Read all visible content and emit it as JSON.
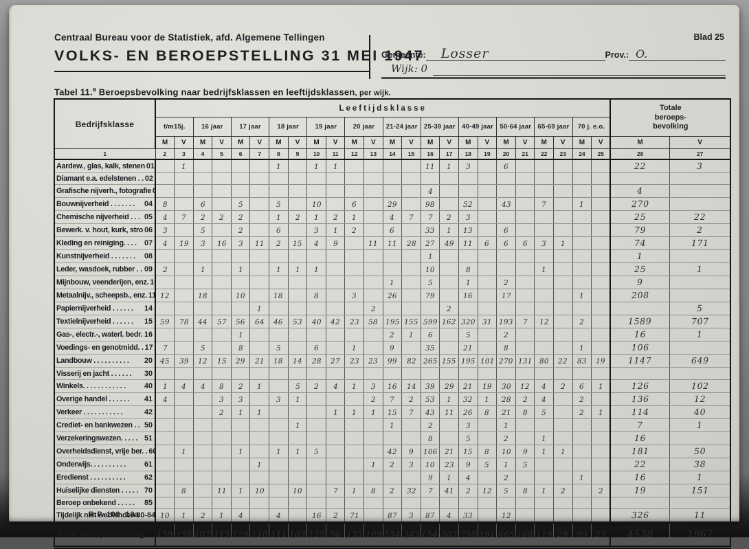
{
  "header": {
    "org": "Centraal Bureau voor de Statistiek, afd. Algemene Tellingen",
    "title": "VOLKS- EN BEROEPSTELLING 31 MEI 1947",
    "blad": "Blad 25",
    "gemeente_label": "Gemeente:",
    "gemeente_value": "Losser",
    "prov_label": "Prov.:",
    "prov_value": "O.",
    "wijk_label": "Wijk:",
    "wijk_value": "0"
  },
  "table_title": {
    "bold": "Tabel 11.",
    "sup": "a",
    "main": " Beroepsbevolking naar bedrijfsklassen en leeftijdsklassen",
    "suffix": ", per wijk."
  },
  "footer": "R.P. 108. 13a",
  "table": {
    "col1_header": "Bedrijfsklasse",
    "col1_number": "1",
    "leeftijd_header": "Leeftijdsklasse",
    "totale_header": "Totale beroeps-bevolking",
    "age_groups": [
      "t/m15j.",
      "16 jaar",
      "17 jaar",
      "18 jaar",
      "19 jaar",
      "20 jaar",
      "21-24 jaar",
      "25-39 jaar",
      "40-49 jaar",
      "50-64 jaar",
      "65-69 jaar",
      "70 j. e.o."
    ],
    "mv_labels": [
      "M",
      "V"
    ],
    "col_numbers": [
      "2",
      "3",
      "4",
      "5",
      "6",
      "7",
      "8",
      "9",
      "10",
      "11",
      "12",
      "13",
      "14",
      "15",
      "16",
      "17",
      "18",
      "19",
      "20",
      "21",
      "22",
      "23",
      "24",
      "25",
      "26",
      "27"
    ],
    "rows": [
      {
        "code": "01",
        "label": "Aardew., glas, kalk, stenen",
        "values": {
          "3": "1",
          "8": "1",
          "10": "1",
          "11": "1",
          "16": "11",
          "17": "1",
          "18": "3",
          "20": "6",
          "26": "22",
          "27": "3"
        }
      },
      {
        "code": "02",
        "label": "Diamant e.a. edelstenen . .",
        "values": {}
      },
      {
        "code": "03",
        "label": "Grafische nijverh., fotografie",
        "values": {
          "16": "4",
          "26": "4"
        }
      },
      {
        "code": "04",
        "label": "Bouwnijverheid . . . . . . .",
        "values": {
          "2": "8",
          "4": "6",
          "6": "5",
          "8": "5",
          "10": "10",
          "12": "6",
          "14": "29",
          "16": "98",
          "18": "52",
          "20": "43",
          "22": "7",
          "24": "1",
          "26": "270"
        }
      },
      {
        "code": "05",
        "label": "Chemische nijverheid . . .",
        "values": {
          "2": "4",
          "3": "7",
          "4": "2",
          "5": "2",
          "6": "2",
          "8": "1",
          "9": "2",
          "10": "1",
          "11": "2",
          "12": "1",
          "14": "4",
          "15": "7",
          "16": "7",
          "17": "2",
          "18": "3",
          "26": "25",
          "27": "22"
        }
      },
      {
        "code": "06",
        "label": "Bewerk. v. hout, kurk, stro",
        "values": {
          "2": "3",
          "4": "5",
          "6": "2",
          "8": "6",
          "10": "3",
          "11": "1",
          "12": "2",
          "14": "6",
          "16": "33",
          "17": "1",
          "18": "13",
          "20": "6",
          "26": "79",
          "27": "2"
        }
      },
      {
        "code": "07",
        "label": "Kleding en reiniging. . . .",
        "values": {
          "2": "4",
          "3": "19",
          "4": "3",
          "5": "16",
          "6": "3",
          "7": "11",
          "8": "2",
          "9": "15",
          "10": "4",
          "11": "9",
          "13": "11",
          "14": "11",
          "15": "28",
          "16": "27",
          "17": "49",
          "18": "11",
          "19": "6",
          "20": "6",
          "21": "6",
          "22": "3",
          "23": "1",
          "26": "74",
          "27": "171"
        }
      },
      {
        "code": "08",
        "label": "Kunstnijverheid . . . . . . .",
        "values": {
          "16": "1",
          "26": "1"
        }
      },
      {
        "code": "09",
        "label": "Leder, wasdoek, rubber . .",
        "values": {
          "2": "2",
          "4": "1",
          "6": "1",
          "8": "1",
          "9": "1",
          "10": "1",
          "16": "10",
          "18": "8",
          "22": "1",
          "26": "25",
          "27": "1"
        }
      },
      {
        "code": "10",
        "label": "Mijnbouw, veenderijen, enz.",
        "values": {
          "14": "1",
          "16": "5",
          "18": "1",
          "20": "2",
          "26": "9"
        }
      },
      {
        "code": "11",
        "label": "Metaalnijv., scheepsb., enz.",
        "values": {
          "2": "12",
          "4": "18",
          "6": "10",
          "8": "18",
          "10": "8",
          "12": "3",
          "14": "26",
          "16": "79",
          "18": "16",
          "20": "17",
          "24": "1",
          "26": "208"
        }
      },
      {
        "code": "14",
        "label": "Papiernijverheid . . . . . .",
        "values": {
          "7": "1",
          "13": "2",
          "17": "2",
          "27": "5"
        }
      },
      {
        "code": "15",
        "label": "Textielnijverheid . . . . . .",
        "values": {
          "2": "59",
          "3": "78",
          "4": "44",
          "5": "57",
          "6": "56",
          "7": "64",
          "8": "46",
          "9": "53",
          "10": "40",
          "11": "42",
          "12": "23",
          "13": "58",
          "14": "195",
          "15": "155",
          "16": "599",
          "17": "162",
          "18": "320",
          "19": "31",
          "20": "193",
          "21": "7",
          "22": "12",
          "24": "2",
          "26": "1589",
          "27": "707"
        }
      },
      {
        "code": "16",
        "label": "Gas-, electr.-, waterl. bedr.",
        "values": {
          "6": "1",
          "14": "2",
          "15": "1",
          "16": "6",
          "18": "5",
          "20": "2",
          "26": "16",
          "27": "1"
        }
      },
      {
        "code": "17",
        "label": "Voedings- en genotmidd. .",
        "values": {
          "2": "7",
          "4": "5",
          "6": "8",
          "8": "5",
          "10": "6",
          "12": "1",
          "14": "9",
          "16": "35",
          "18": "21",
          "20": "8",
          "24": "1",
          "26": "106"
        }
      },
      {
        "code": "20",
        "label": "Landbouw . . . . . . . . . .",
        "values": {
          "2": "45",
          "3": "39",
          "4": "12",
          "5": "15",
          "6": "29",
          "7": "21",
          "8": "18",
          "9": "14",
          "10": "28",
          "11": "27",
          "12": "23",
          "13": "23",
          "14": "99",
          "15": "82",
          "16": "265",
          "17": "155",
          "18": "195",
          "19": "101",
          "20": "270",
          "21": "131",
          "22": "80",
          "23": "22",
          "24": "83",
          "25": "19",
          "26": "1147",
          "27": "649"
        }
      },
      {
        "code": "30",
        "label": "Visserij en jacht . . . . . .",
        "values": {}
      },
      {
        "code": "40",
        "label": "Winkels. . . . . . . . . . . .",
        "values": {
          "2": "1",
          "3": "4",
          "4": "4",
          "5": "8",
          "6": "2",
          "7": "1",
          "9": "5",
          "10": "2",
          "11": "4",
          "12": "1",
          "13": "3",
          "14": "16",
          "15": "14",
          "16": "39",
          "17": "29",
          "18": "21",
          "19": "19",
          "20": "30",
          "21": "12",
          "22": "4",
          "23": "2",
          "24": "6",
          "25": "1",
          "26": "126",
          "27": "102"
        }
      },
      {
        "code": "41",
        "label": "Overige handel . . . . . .",
        "values": {
          "2": "4",
          "5": "3",
          "6": "3",
          "8": "3",
          "9": "1",
          "13": "2",
          "14": "7",
          "15": "2",
          "16": "53",
          "17": "1",
          "18": "32",
          "19": "1",
          "20": "28",
          "21": "2",
          "22": "4",
          "24": "2",
          "26": "136",
          "27": "12"
        }
      },
      {
        "code": "42",
        "label": "Verkeer . . . . . . . . . . .",
        "values": {
          "5": "2",
          "6": "1",
          "7": "1",
          "11": "1",
          "12": "1",
          "13": "1",
          "14": "15",
          "15": "7",
          "16": "43",
          "17": "11",
          "18": "26",
          "19": "8",
          "20": "21",
          "21": "8",
          "22": "5",
          "24": "2",
          "25": "1",
          "26": "114",
          "27": "40"
        }
      },
      {
        "code": "50",
        "label": "Crediet- en bankwezen . .",
        "values": {
          "9": "1",
          "14": "1",
          "16": "2",
          "18": "3",
          "20": "1",
          "26": "7",
          "27": "1"
        }
      },
      {
        "code": "51",
        "label": "Verzekeringswezen. . . . .",
        "values": {
          "16": "8",
          "18": "5",
          "20": "2",
          "22": "1",
          "26": "16"
        }
      },
      {
        "code": "60",
        "label": "Overheidsdienst, vrije ber. .",
        "values": {
          "3": "1",
          "6": "1",
          "8": "1",
          "9": "1",
          "10": "5",
          "14": "42",
          "15": "9",
          "16": "106",
          "17": "21",
          "18": "15",
          "19": "8",
          "20": "10",
          "21": "9",
          "22": "1",
          "23": "1",
          "26": "181",
          "27": "50"
        }
      },
      {
        "code": "61",
        "label": "Onderwijs. . . . . . . . . .",
        "values": {
          "7": "1",
          "13": "1",
          "14": "2",
          "15": "3",
          "16": "10",
          "17": "23",
          "18": "9",
          "19": "5",
          "20": "1",
          "21": "5",
          "26": "22",
          "27": "38"
        }
      },
      {
        "code": "62",
        "label": "Eredienst . . . . . . . . . .",
        "values": {
          "16": "9",
          "17": "1",
          "18": "4",
          "20": "2",
          "24": "1",
          "26": "16",
          "27": "1"
        }
      },
      {
        "code": "70",
        "label": "Huiselijke diensten . . . . .",
        "values": {
          "3": "8",
          "5": "11",
          "6": "1",
          "7": "10",
          "9": "10",
          "11": "7",
          "12": "1",
          "13": "8",
          "14": "2",
          "15": "32",
          "16": "7",
          "17": "41",
          "18": "2",
          "19": "12",
          "20": "5",
          "21": "8",
          "22": "1",
          "23": "2",
          "25": "2",
          "26": "19",
          "27": "151"
        }
      },
      {
        "code": "85",
        "label": "Beroep onbekend . . . . .",
        "values": {}
      },
      {
        "code": "80-84",
        "label": "Tijdelijk niet werkenden",
        "values": {
          "2": "10",
          "3": "1",
          "4": "2",
          "5": "1",
          "6": "4",
          "8": "4",
          "10": "16",
          "11": "2",
          "12": "71",
          "14": "87",
          "15": "3",
          "16": "87",
          "17": "4",
          "18": "33",
          "20": "12",
          "26": "326",
          "27": "11"
        }
      }
    ],
    "total_row": {
      "label": "Totale beroepsbevolking . . . .",
      "values": {
        "2": "159",
        "3": "158",
        "4": "102",
        "5": "115",
        "6": "129",
        "7": "110",
        "8": "111",
        "9": "103",
        "10": "125",
        "11": "96",
        "12": "133",
        "13": "109",
        "14": "554",
        "15": "343",
        "16": "1544",
        "17": "503",
        "18": "798",
        "19": "191",
        "20": "665",
        "21": "188",
        "22": "119",
        "23": "28",
        "24": "99",
        "25": "23",
        "26": "4538",
        "27": "1967"
      }
    }
  }
}
